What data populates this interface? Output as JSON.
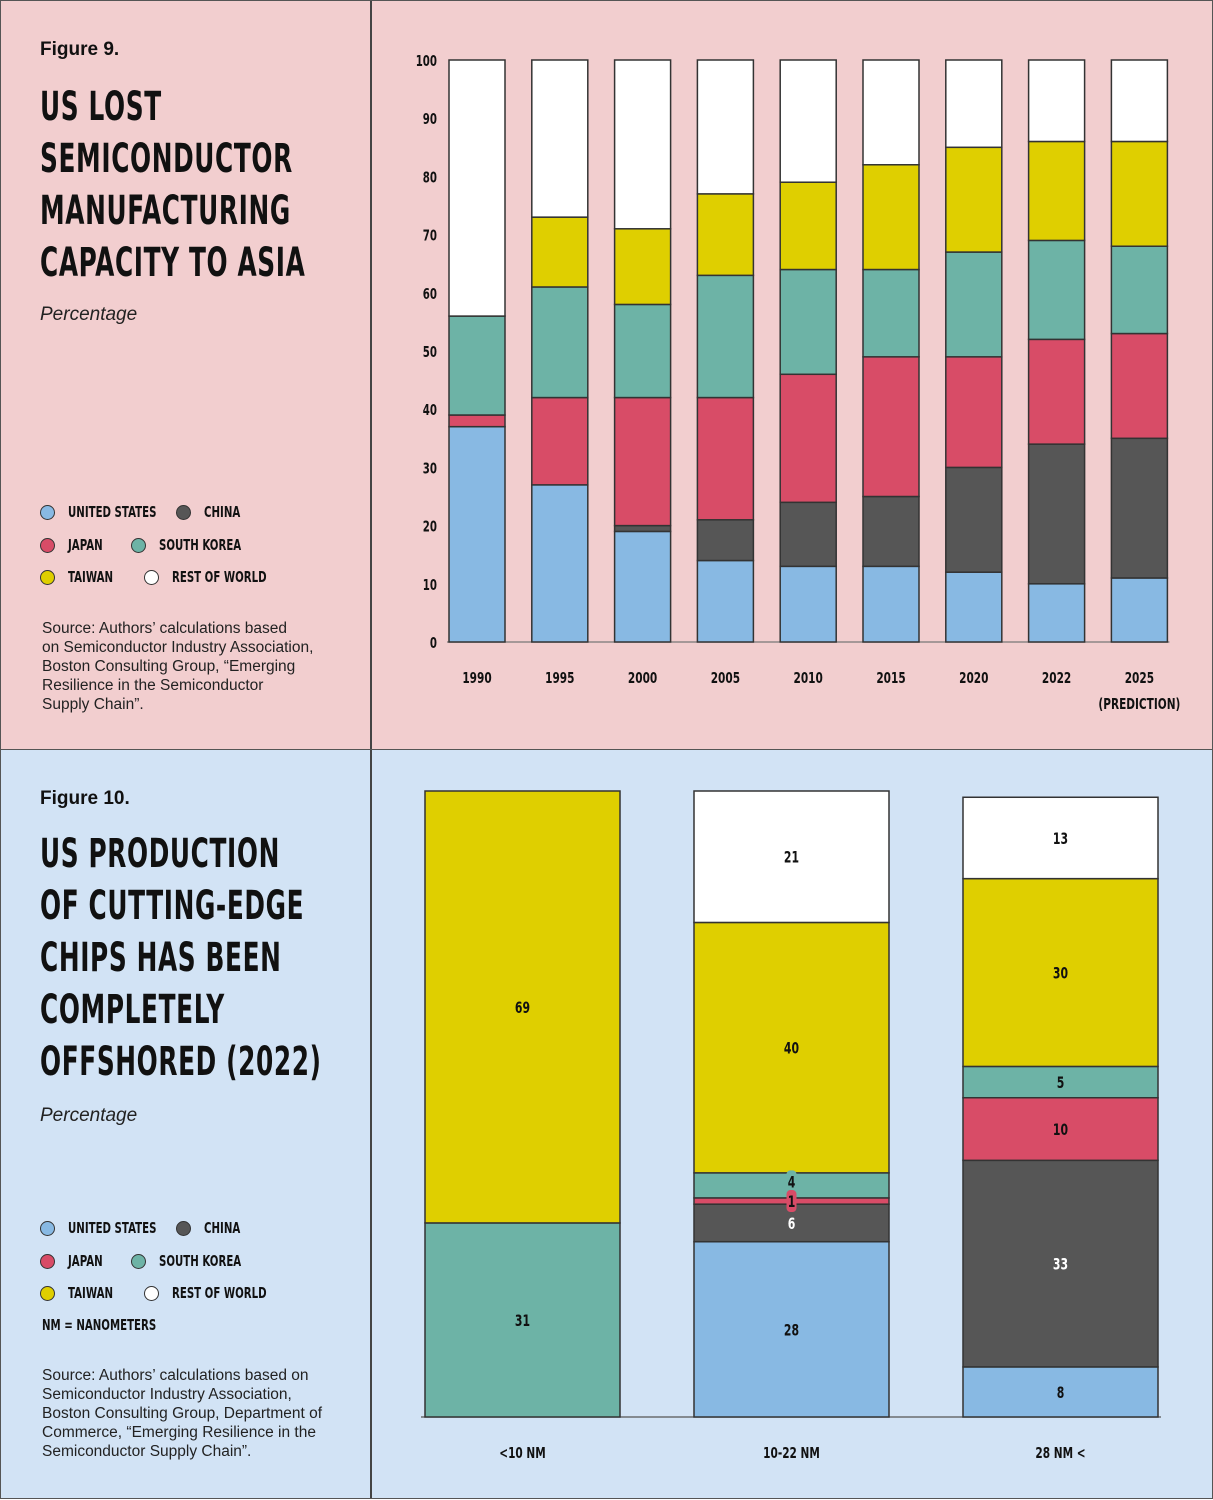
{
  "colors": {
    "united_states": "#88b9e3",
    "china": "#565656",
    "japan": "#d84c67",
    "south_korea": "#6db3a6",
    "taiwan": "#dfcf00",
    "rest_of_world": "#ffffff",
    "panel9_bg": "#f2cecf",
    "panel10_bg": "#d2e3f5"
  },
  "figure9": {
    "figure_label": "Figure 9.",
    "title_lines": [
      "US LOST",
      "SEMICONDUCTOR",
      "MANUFACTURING",
      "CAPACITY TO ASIA"
    ],
    "subtitle": "Percentage",
    "legend": [
      {
        "key": "united_states",
        "label": "UNITED STATES"
      },
      {
        "key": "china",
        "label": "CHINA"
      },
      {
        "key": "japan",
        "label": "JAPAN"
      },
      {
        "key": "south_korea",
        "label": "SOUTH KOREA"
      },
      {
        "key": "taiwan",
        "label": "TAIWAN"
      },
      {
        "key": "rest_of_world",
        "label": "REST OF WORLD"
      }
    ],
    "source": "Source: Authors’ calculations based on Semiconductor Industry Association, Boston Consulting Group, “Emerging Resilience in the Semiconductor Supply Chain”.",
    "source_lines": [
      "Source: Authors’ calculations based",
      "on Semiconductor Industry Association,",
      "Boston Consulting Group, “Emerging",
      "Resilience in the Semiconductor",
      "Supply Chain”."
    ]
  },
  "figure10": {
    "figure_label": "Figure 10.",
    "title_lines": [
      "US PRODUCTION",
      "OF CUTTING-EDGE",
      "CHIPS HAS BEEN",
      "COMPLETELY",
      "OFFSHORED (2022)"
    ],
    "subtitle": "Percentage",
    "legend": [
      {
        "key": "united_states",
        "label": "UNITED STATES"
      },
      {
        "key": "china",
        "label": "CHINA"
      },
      {
        "key": "japan",
        "label": "JAPAN"
      },
      {
        "key": "south_korea",
        "label": "SOUTH KOREA"
      },
      {
        "key": "taiwan",
        "label": "TAIWAN"
      },
      {
        "key": "rest_of_world",
        "label": "REST OF WORLD"
      }
    ],
    "note": "NM = NANOMETERS",
    "source": "Source: Authors’ calculations based on Semiconductor Industry Association, Boston Consulting Group, Department of Commerce, “Emerging Resilience in the Semiconductor Supply Chain”.",
    "source_lines": [
      "Source: Authors’ calculations based on",
      "Semiconductor Industry Association,",
      "Boston Consulting Group, Department of",
      "Commerce, “Emerging Resilience in the",
      "Semiconductor Supply Chain”."
    ]
  },
  "chart_data": [
    {
      "type": "bar",
      "stacked": true,
      "title": "US LOST SEMICONDUCTOR MANUFACTURING CAPACITY TO ASIA",
      "subtitle": "Percentage",
      "xlabel": "",
      "ylabel": "Percentage",
      "ylim": [
        0,
        100
      ],
      "yticks": [
        0,
        10,
        20,
        30,
        40,
        50,
        60,
        70,
        80,
        90,
        100
      ],
      "grid": false,
      "legend_position": "left-panel",
      "categories": [
        "1990",
        "1995",
        "2000",
        "2005",
        "2010",
        "2015",
        "2020",
        "2022",
        "2025"
      ],
      "category_sublabels": [
        "",
        "",
        "",
        "",
        "",
        "",
        "",
        "",
        "(PREDICTION)"
      ],
      "series": [
        {
          "name": "UNITED STATES",
          "key": "united_states",
          "values": [
            37,
            27,
            19,
            14,
            13,
            13,
            12,
            10,
            11
          ]
        },
        {
          "name": "CHINA",
          "key": "china",
          "values": [
            0,
            0,
            1,
            7,
            11,
            12,
            18,
            24,
            24
          ]
        },
        {
          "name": "JAPAN",
          "key": "japan",
          "values": [
            2,
            15,
            22,
            21,
            22,
            24,
            19,
            18,
            18
          ]
        },
        {
          "name": "SOUTH KOREA",
          "key": "south_korea",
          "values": [
            17,
            19,
            16,
            21,
            18,
            15,
            18,
            17,
            15
          ]
        },
        {
          "name": "TAIWAN",
          "key": "taiwan",
          "values": [
            0,
            12,
            13,
            14,
            15,
            18,
            18,
            17,
            18
          ]
        },
        {
          "name": "REST OF WORLD",
          "key": "rest_of_world",
          "values": [
            44,
            27,
            29,
            23,
            21,
            18,
            15,
            14,
            14
          ]
        }
      ]
    },
    {
      "type": "bar",
      "stacked": true,
      "title": "US PRODUCTION OF CUTTING-EDGE CHIPS HAS BEEN COMPLETELY OFFSHORED (2022)",
      "subtitle": "Percentage",
      "xlabel": "",
      "ylabel": "Percentage",
      "ylim": [
        0,
        100
      ],
      "grid": false,
      "legend_position": "left-panel",
      "data_labels": true,
      "categories": [
        "<10 NM",
        "10-22 NM",
        "28 NM <"
      ],
      "series": [
        {
          "name": "UNITED STATES",
          "key": "united_states",
          "values": [
            0,
            28,
            8
          ]
        },
        {
          "name": "CHINA",
          "key": "china",
          "values": [
            0,
            6,
            33
          ]
        },
        {
          "name": "JAPAN",
          "key": "japan",
          "values": [
            0,
            1,
            10
          ]
        },
        {
          "name": "SOUTH KOREA",
          "key": "south_korea",
          "values": [
            31,
            4,
            5
          ]
        },
        {
          "name": "TAIWAN",
          "key": "taiwan",
          "values": [
            69,
            40,
            30
          ]
        },
        {
          "name": "REST OF WORLD",
          "key": "rest_of_world",
          "values": [
            0,
            21,
            13
          ]
        }
      ]
    }
  ]
}
